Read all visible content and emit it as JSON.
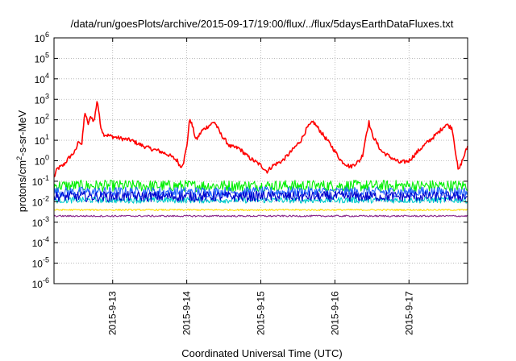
{
  "chart_data": {
    "type": "line",
    "title": "/data/run/goesPlots/archive/2015-09-17/19:00/flux/../flux/5daysEarthDataFluxes.txt",
    "xlabel": "Coordinated Universal Time (UTC)",
    "ylabel_parts": {
      "pre": "protons/cm",
      "sup": "2",
      "post": "-s-sr-MeV"
    },
    "y_scale": "log",
    "ylim": [
      1e-06,
      1000000.0
    ],
    "y_ticks": [
      {
        "base": "10",
        "exp": "-6"
      },
      {
        "base": "10",
        "exp": "-5"
      },
      {
        "base": "10",
        "exp": "-4"
      },
      {
        "base": "10",
        "exp": "-3"
      },
      {
        "base": "10",
        "exp": "-2"
      },
      {
        "base": "10",
        "exp": "-1"
      },
      {
        "base": "10",
        "exp": "0"
      },
      {
        "base": "10",
        "exp": "1"
      },
      {
        "base": "10",
        "exp": "2"
      },
      {
        "base": "10",
        "exp": "3"
      },
      {
        "base": "10",
        "exp": "4"
      },
      {
        "base": "10",
        "exp": "5"
      },
      {
        "base": "10",
        "exp": "6"
      }
    ],
    "x_ticks": [
      "2015-9-13",
      "2015-9-14",
      "2015-9-15",
      "2015-9-16",
      "2015-9-17"
    ],
    "xlim": [
      "2015-09-12 05:00",
      "2015-09-17 19:00"
    ],
    "grid": true,
    "series": [
      {
        "color": "#ff0000",
        "noise": 0.1,
        "points": [
          [
            "2015-09-12 05:00",
            0.15
          ],
          [
            "2015-09-12 06:00",
            0.4
          ],
          [
            "2015-09-12 08:00",
            0.6
          ],
          [
            "2015-09-12 10:00",
            1.5
          ],
          [
            "2015-09-12 12:00",
            3
          ],
          [
            "2015-09-12 13:00",
            10
          ],
          [
            "2015-09-12 14:00",
            6
          ],
          [
            "2015-09-12 15:00",
            250
          ],
          [
            "2015-09-12 16:00",
            60
          ],
          [
            "2015-09-12 17:00",
            150
          ],
          [
            "2015-09-12 18:00",
            80
          ],
          [
            "2015-09-12 19:00",
            1000
          ],
          [
            "2015-09-12 20:00",
            60
          ],
          [
            "2015-09-12 21:00",
            20
          ],
          [
            "2015-09-13 00:00",
            15
          ],
          [
            "2015-09-13 03:00",
            12
          ],
          [
            "2015-09-13 06:00",
            10
          ],
          [
            "2015-09-13 09:00",
            6
          ],
          [
            "2015-09-13 12:00",
            4
          ],
          [
            "2015-09-13 15:00",
            3
          ],
          [
            "2015-09-13 18:00",
            2
          ],
          [
            "2015-09-13 21:00",
            1
          ],
          [
            "2015-09-13 22:00",
            0.5
          ],
          [
            "2015-09-13 23:00",
            0.9
          ],
          [
            "2015-09-14 00:00",
            5
          ],
          [
            "2015-09-14 01:00",
            120
          ],
          [
            "2015-09-14 02:00",
            40
          ],
          [
            "2015-09-14 03:00",
            10
          ],
          [
            "2015-09-14 05:00",
            30
          ],
          [
            "2015-09-14 07:00",
            50
          ],
          [
            "2015-09-14 09:00",
            80
          ],
          [
            "2015-09-14 11:00",
            20
          ],
          [
            "2015-09-14 14:00",
            5
          ],
          [
            "2015-09-14 17:00",
            4
          ],
          [
            "2015-09-14 20:00",
            1.5
          ],
          [
            "2015-09-15 00:00",
            0.6
          ],
          [
            "2015-09-15 02:00",
            0.3
          ],
          [
            "2015-09-15 04:00",
            0.6
          ],
          [
            "2015-09-15 07:00",
            1
          ],
          [
            "2015-09-15 10:00",
            3
          ],
          [
            "2015-09-15 13:00",
            10
          ],
          [
            "2015-09-15 15:00",
            40
          ],
          [
            "2015-09-15 17:00",
            80
          ],
          [
            "2015-09-15 20:00",
            20
          ],
          [
            "2015-09-15 23:00",
            5
          ],
          [
            "2015-09-16 02:00",
            1
          ],
          [
            "2015-09-16 05:00",
            0.5
          ],
          [
            "2015-09-16 07:00",
            0.8
          ],
          [
            "2015-09-16 08:00",
            1
          ],
          [
            "2015-09-16 09:00",
            2
          ],
          [
            "2015-09-16 10:00",
            15
          ],
          [
            "2015-09-16 11:00",
            80
          ],
          [
            "2015-09-16 12:00",
            20
          ],
          [
            "2015-09-16 15:00",
            3
          ],
          [
            "2015-09-16 18:00",
            1.5
          ],
          [
            "2015-09-16 21:00",
            0.8
          ],
          [
            "2015-09-17 00:00",
            1
          ],
          [
            "2015-09-17 03:00",
            3
          ],
          [
            "2015-09-17 06:00",
            8
          ],
          [
            "2015-09-17 09:00",
            20
          ],
          [
            "2015-09-17 12:00",
            60
          ],
          [
            "2015-09-17 14:00",
            40
          ],
          [
            "2015-09-17 16:00",
            0.3
          ],
          [
            "2015-09-17 17:00",
            0.8
          ],
          [
            "2015-09-17 18:00",
            2
          ],
          [
            "2015-09-17 19:00",
            5
          ]
        ]
      },
      {
        "color": "#00ee00",
        "noise": 0.28,
        "points": [
          [
            "2015-09-12 05:00",
            0.06
          ],
          [
            "2015-09-17 19:00",
            0.06
          ]
        ]
      },
      {
        "color": "#2266ff",
        "noise": 0.25,
        "points": [
          [
            "2015-09-12 05:00",
            0.03
          ],
          [
            "2015-09-17 19:00",
            0.03
          ]
        ]
      },
      {
        "color": "#00cccc",
        "noise": 0.15,
        "points": [
          [
            "2015-09-12 05:00",
            0.012
          ],
          [
            "2015-09-17 19:00",
            0.012
          ]
        ]
      },
      {
        "color": "#0000cc",
        "noise": 0.25,
        "points": [
          [
            "2015-09-12 05:00",
            0.018
          ],
          [
            "2015-09-17 19:00",
            0.018
          ]
        ]
      },
      {
        "color": "#ffdd00",
        "noise": 0.04,
        "points": [
          [
            "2015-09-12 05:00",
            0.004
          ],
          [
            "2015-09-17 19:00",
            0.004
          ]
        ]
      },
      {
        "color": "#882288",
        "noise": 0.04,
        "points": [
          [
            "2015-09-12 05:00",
            0.002
          ],
          [
            "2015-09-17 19:00",
            0.002
          ]
        ]
      }
    ]
  }
}
